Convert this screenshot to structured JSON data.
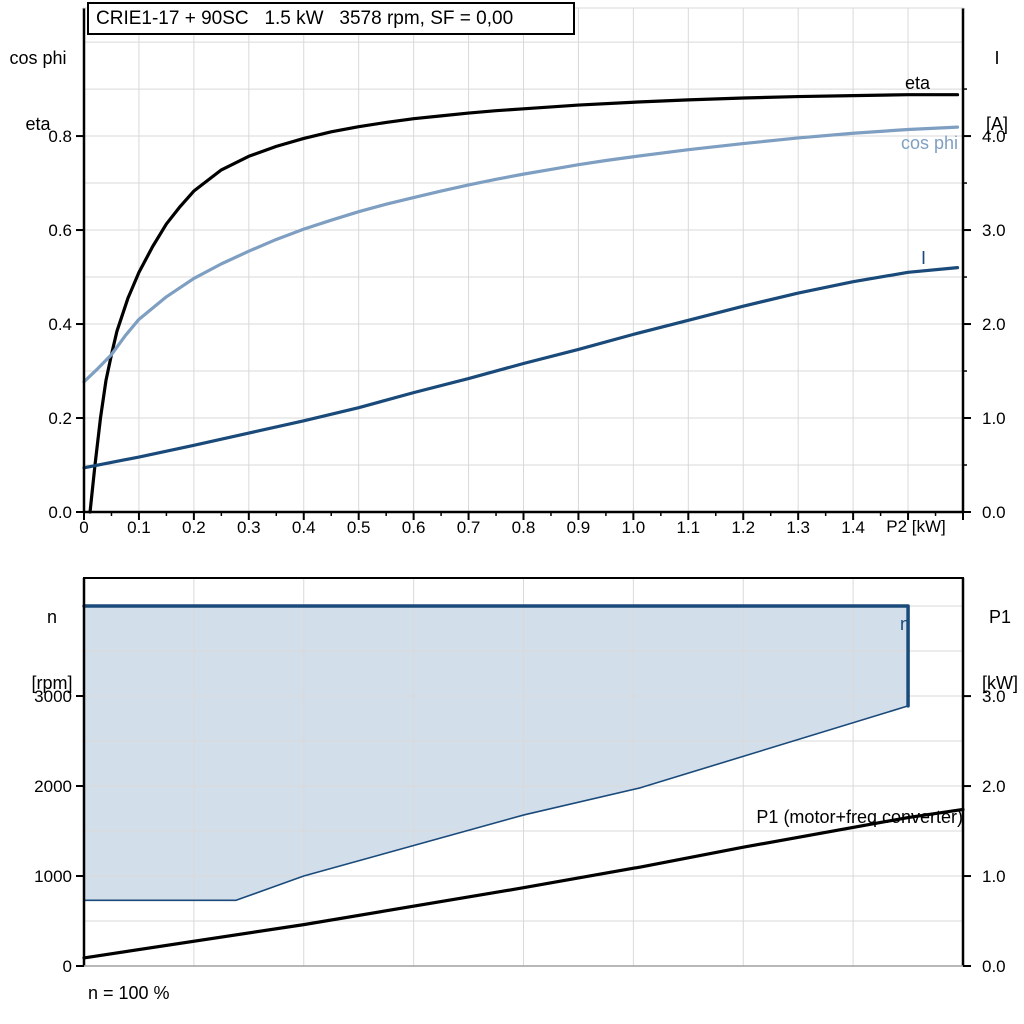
{
  "chart_data": [
    {
      "type": "line",
      "title": "CRIE1-17 + 90SC   1.5 kW   3578 rpm, SF = 0,00",
      "x_axis": {
        "axis_label": "P2 [kW]",
        "min": 0,
        "max": 1.6,
        "tick_values": [
          0,
          0.1,
          0.2,
          0.3,
          0.4,
          0.5,
          0.6,
          0.7,
          0.8,
          0.9,
          1.0,
          1.1,
          1.2,
          1.3,
          1.4
        ],
        "tick_labels": [
          "0",
          "0.1",
          "0.2",
          "0.3",
          "0.4",
          "0.5",
          "0.6",
          "0.7",
          "0.8",
          "0.9",
          "1.0",
          "1.1",
          "1.2",
          "1.3",
          "1.4"
        ],
        "grid_step": 0.1,
        "minor_tick_step": 0.05
      },
      "left_axis": {
        "label_lines": [
          "cos phi",
          "eta"
        ],
        "min": 0,
        "max": 1.0725,
        "tick_values": [
          0,
          0.2,
          0.4,
          0.6,
          0.8
        ],
        "tick_labels": [
          "0.0",
          "0.2",
          "0.4",
          "0.6",
          "0.8"
        ],
        "grid_step": 0.1
      },
      "right_axis": {
        "label_lines": [
          "I",
          "[A]"
        ],
        "min": 0,
        "max": 5.3625,
        "tick_values": [
          0,
          1,
          2,
          3,
          4
        ],
        "tick_labels": [
          "0.0",
          "1.0",
          "2.0",
          "3.0",
          "4.0"
        ],
        "minor_tick_step": 0.5
      },
      "series": [
        {
          "id": "eta",
          "label": "eta",
          "axis": "left",
          "color": "#000000",
          "width": 3.2,
          "points": [
            [
              0.011,
              0
            ],
            [
              0.02,
              0.1
            ],
            [
              0.03,
              0.2
            ],
            [
              0.04,
              0.28
            ],
            [
              0.05,
              0.335
            ],
            [
              0.06,
              0.385
            ],
            [
              0.08,
              0.455
            ],
            [
              0.1,
              0.51
            ],
            [
              0.125,
              0.565
            ],
            [
              0.15,
              0.613
            ],
            [
              0.175,
              0.65
            ],
            [
              0.2,
              0.683
            ],
            [
              0.25,
              0.728
            ],
            [
              0.3,
              0.757
            ],
            [
              0.35,
              0.778
            ],
            [
              0.4,
              0.795
            ],
            [
              0.45,
              0.809
            ],
            [
              0.5,
              0.82
            ],
            [
              0.55,
              0.829
            ],
            [
              0.6,
              0.837
            ],
            [
              0.65,
              0.843
            ],
            [
              0.7,
              0.849
            ],
            [
              0.75,
              0.854
            ],
            [
              0.8,
              0.858
            ],
            [
              0.9,
              0.866
            ],
            [
              1.0,
              0.872
            ],
            [
              1.1,
              0.877
            ],
            [
              1.2,
              0.881
            ],
            [
              1.3,
              0.884
            ],
            [
              1.4,
              0.886
            ],
            [
              1.5,
              0.888
            ],
            [
              1.59,
              0.888
            ]
          ]
        },
        {
          "id": "cos_phi",
          "label": "cos phi",
          "axis": "left",
          "color": "#7E9FC1",
          "width": 3.2,
          "points": [
            [
              0,
              0.277
            ],
            [
              0.025,
              0.305
            ],
            [
              0.05,
              0.335
            ],
            [
              0.075,
              0.375
            ],
            [
              0.1,
              0.41
            ],
            [
              0.15,
              0.458
            ],
            [
              0.2,
              0.497
            ],
            [
              0.25,
              0.528
            ],
            [
              0.3,
              0.555
            ],
            [
              0.35,
              0.58
            ],
            [
              0.4,
              0.602
            ],
            [
              0.45,
              0.621
            ],
            [
              0.5,
              0.639
            ],
            [
              0.55,
              0.655
            ],
            [
              0.6,
              0.669
            ],
            [
              0.65,
              0.683
            ],
            [
              0.7,
              0.696
            ],
            [
              0.75,
              0.708
            ],
            [
              0.8,
              0.719
            ],
            [
              0.85,
              0.729
            ],
            [
              0.9,
              0.739
            ],
            [
              0.95,
              0.748
            ],
            [
              1.0,
              0.756
            ],
            [
              1.1,
              0.771
            ],
            [
              1.2,
              0.784
            ],
            [
              1.3,
              0.796
            ],
            [
              1.4,
              0.806
            ],
            [
              1.5,
              0.814
            ],
            [
              1.59,
              0.819
            ]
          ]
        },
        {
          "id": "current",
          "label": "I",
          "axis": "right",
          "color": "#1A4A7A",
          "width": 3.2,
          "points": [
            [
              0,
              0.47
            ],
            [
              0.1,
              0.585
            ],
            [
              0.2,
              0.71
            ],
            [
              0.3,
              0.84
            ],
            [
              0.4,
              0.97
            ],
            [
              0.5,
              1.11
            ],
            [
              0.6,
              1.27
            ],
            [
              0.7,
              1.42
            ],
            [
              0.8,
              1.58
            ],
            [
              0.9,
              1.73
            ],
            [
              1.0,
              1.89
            ],
            [
              1.1,
              2.04
            ],
            [
              1.2,
              2.19
            ],
            [
              1.3,
              2.33
            ],
            [
              1.4,
              2.45
            ],
            [
              1.5,
              2.55
            ],
            [
              1.59,
              2.6
            ]
          ]
        }
      ]
    },
    {
      "type": "line+area",
      "footnote": "n = 100 %",
      "x_axis": {
        "axis_label": "",
        "min": 0,
        "max": 1,
        "grid_step": 0.125
      },
      "left_axis": {
        "label_lines": [
          "n",
          "[rpm]"
        ],
        "min": 0,
        "max": 4311,
        "tick_values": [
          0,
          1000,
          2000,
          3000
        ],
        "tick_labels": [
          "0",
          "1000",
          "2000",
          "3000"
        ],
        "grid_step": 500
      },
      "right_axis": {
        "label_lines": [
          "P1",
          "[kW]"
        ],
        "min": 0,
        "max": 4.3125,
        "tick_values": [
          0,
          1,
          2,
          3
        ],
        "tick_labels": [
          "0.0",
          "1.0",
          "2.0",
          "3.0"
        ],
        "grid_step": 0.5
      },
      "series": [
        {
          "id": "n_region",
          "axis": "left",
          "fill": "#D3DEEB",
          "points": [
            [
              0,
              4000
            ],
            [
              0.9375,
              4000
            ],
            [
              0.9375,
              2890
            ],
            [
              0.633,
              1980
            ],
            [
              0.501,
              1680
            ],
            [
              0.25,
              1000
            ],
            [
              0.173,
              730
            ],
            [
              0,
              730
            ]
          ]
        },
        {
          "id": "n_top",
          "label": "n",
          "axis": "left",
          "color": "#1A4A7A",
          "width": 3.5,
          "points": [
            [
              0,
              4000
            ],
            [
              0.9375,
              4000
            ],
            [
              0.9375,
              2890
            ]
          ]
        },
        {
          "id": "n_lower",
          "axis": "left",
          "color": "#1A4A7A",
          "width": 1.6,
          "points": [
            [
              0.9375,
              2890
            ],
            [
              0.633,
              1980
            ],
            [
              0.501,
              1680
            ],
            [
              0.25,
              1000
            ],
            [
              0.173,
              730
            ],
            [
              0,
              730
            ]
          ]
        },
        {
          "id": "p1",
          "label": "P1 (motor+freq converter)",
          "axis": "right",
          "color": "#000000",
          "width": 3.2,
          "points": [
            [
              0,
              0.09
            ],
            [
              0.25,
              0.46
            ],
            [
              0.5,
              0.87
            ],
            [
              0.633,
              1.1
            ],
            [
              0.75,
              1.32
            ],
            [
              0.9375,
              1.65
            ],
            [
              1.0,
              1.74
            ]
          ]
        }
      ]
    }
  ],
  "colors": {
    "grid": "#D9D9D9",
    "axis": "#000000",
    "bottom_border": "#A0A0A0",
    "area_fill": "#D3DEEB",
    "eta": "#000000",
    "cos_phi": "#7E9FC1",
    "dark_blue": "#1A4A7A"
  }
}
